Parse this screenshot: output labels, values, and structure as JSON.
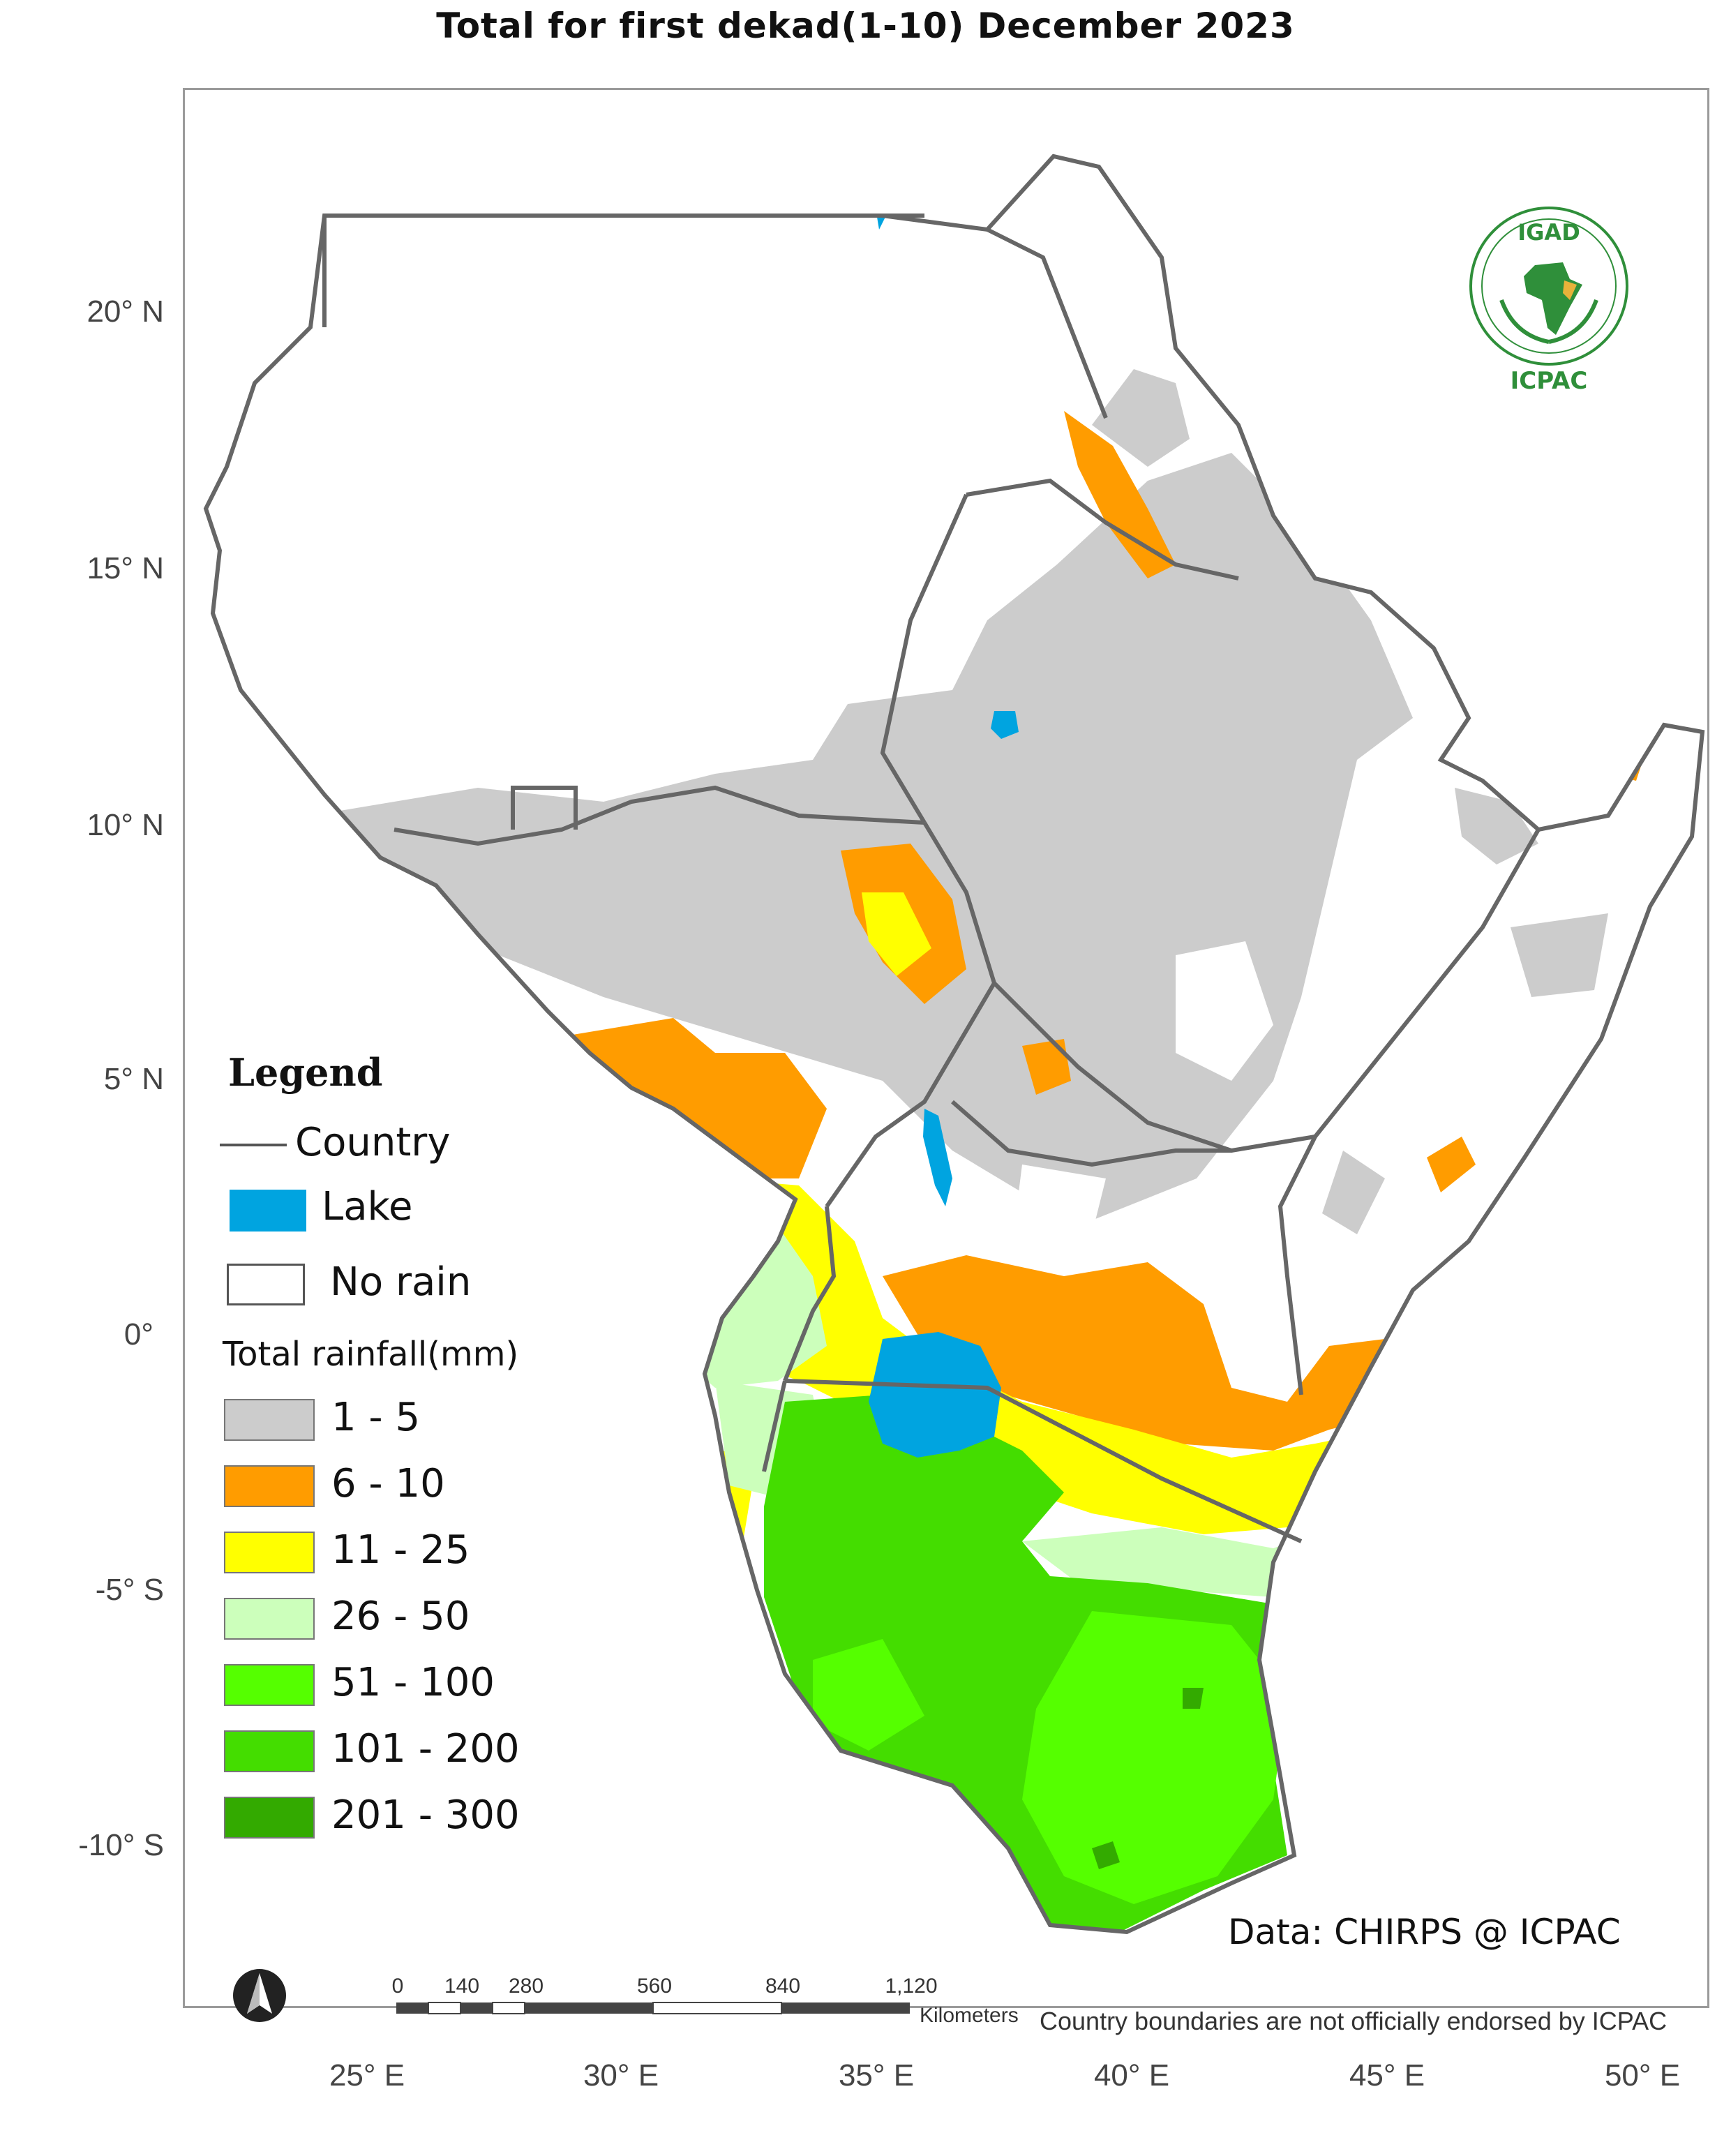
{
  "title": "Total  for   first dekad(1-10) December 2023",
  "axes": {
    "lat_labels": [
      "20° N",
      "15° N",
      "10° N",
      "5° N",
      "0°",
      "-5° S",
      "-10° S"
    ],
    "lon_labels": [
      "25° E",
      "30° E",
      "35° E",
      "40° E",
      "45° E",
      "50° E"
    ]
  },
  "legend": {
    "title": "Legend",
    "country_label": "Country",
    "lake_label": "Lake",
    "lake_color": "#00a4e0",
    "no_rain_label": "No rain",
    "rainfall_heading": "Total rainfall(mm)",
    "classes": [
      {
        "label": "1 - 5",
        "color": "#cccccc"
      },
      {
        "label": "6 - 10",
        "color": "#ff9c00"
      },
      {
        "label": "11 - 25",
        "color": "#ffff00"
      },
      {
        "label": "26 - 50",
        "color": "#ccffbb"
      },
      {
        "label": "51 - 100",
        "color": "#55ff00"
      },
      {
        "label": "101 - 200",
        "color": "#44dd00"
      },
      {
        "label": "201 - 300",
        "color": "#33aa00"
      }
    ]
  },
  "scale_bar": {
    "labels": [
      "0",
      "140",
      "280",
      "560",
      "840",
      "1,120"
    ],
    "unit": "Kilometers"
  },
  "credit": "Data: CHIRPS @ ICPAC",
  "disclaimer": "Country boundaries are not officially endorsed by ICPAC",
  "logo": {
    "top_text": "IGAD",
    "bottom_text": "ICPAC"
  },
  "north_arrow": "north-arrow-icon"
}
